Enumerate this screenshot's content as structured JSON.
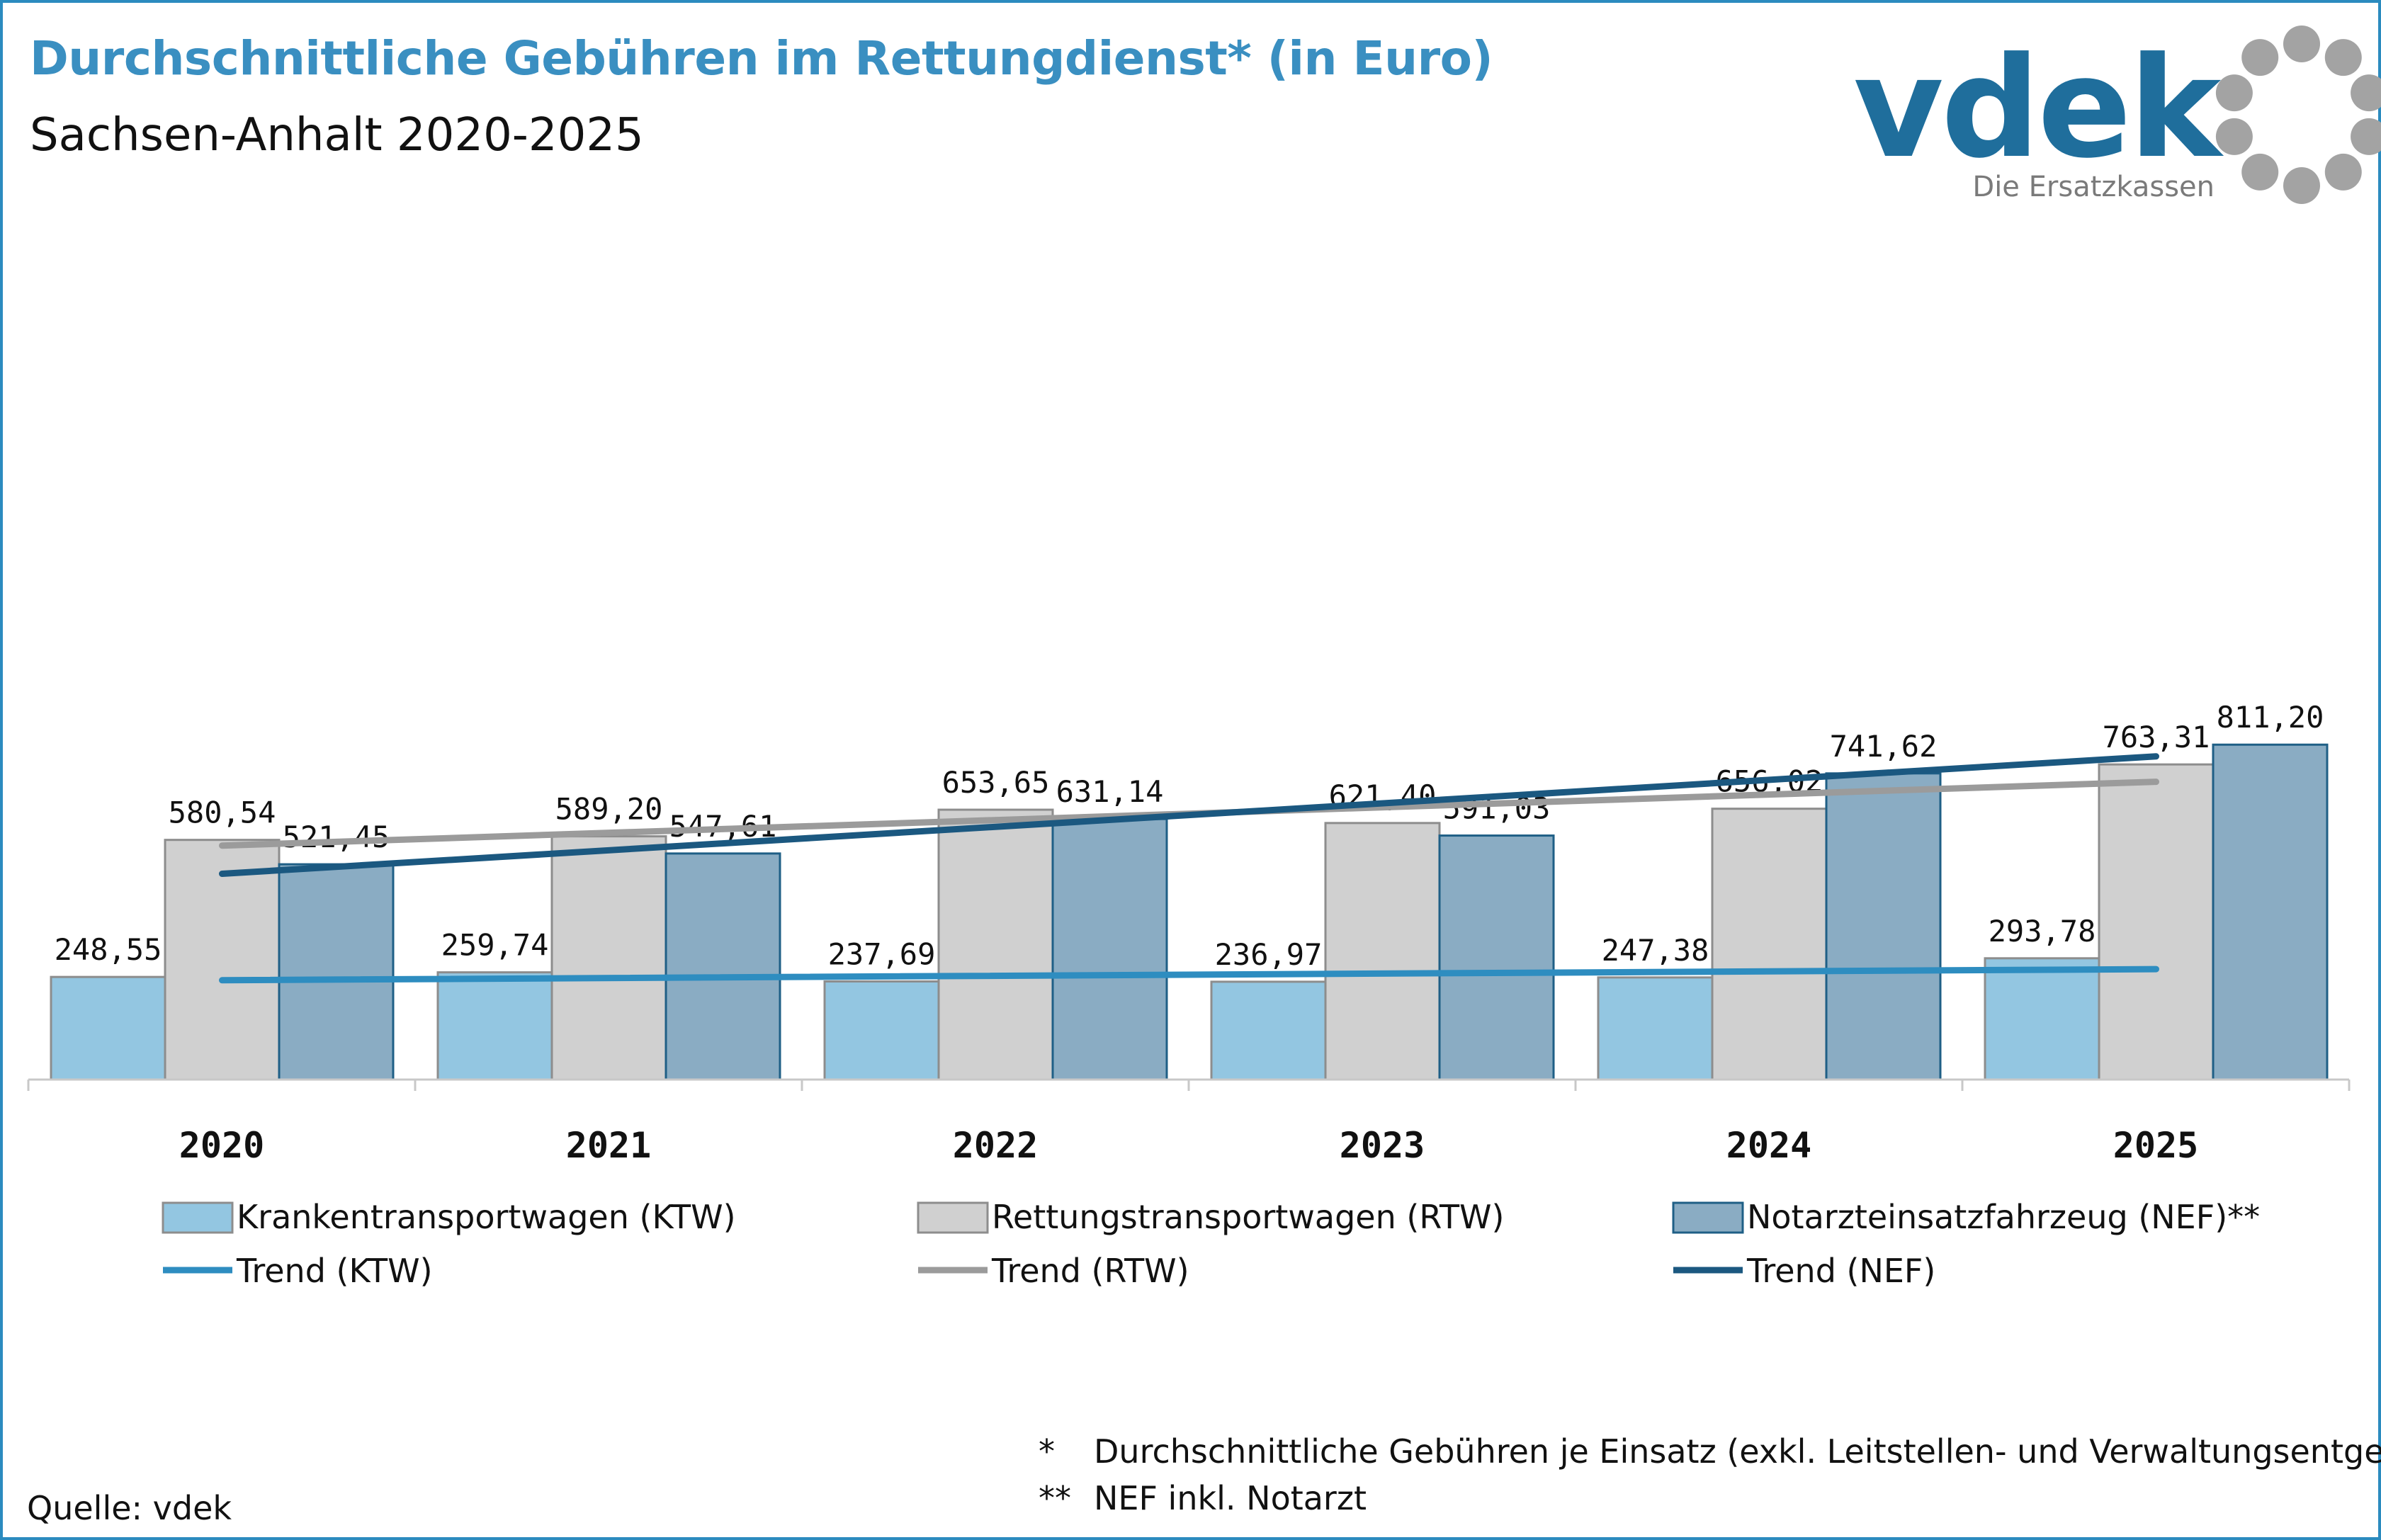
{
  "header": {
    "title": "Durchschnittliche Gebühren im Rettungdienst* (in Euro)",
    "subtitle": "Sachsen-Anhalt 2020-2025"
  },
  "logo": {
    "wordmark": "vdek",
    "tagline": "Die Ersatzkassen",
    "colors": {
      "wordmark": "#1f6e9c",
      "dots": "#a3a3a3"
    }
  },
  "chart_data": {
    "type": "bar",
    "categories": [
      "2020",
      "2021",
      "2022",
      "2023",
      "2024",
      "2025"
    ],
    "series": [
      {
        "name": "Krankentransportwagen (KTW)",
        "color": "#93c6e1",
        "values": [
          248.55,
          259.74,
          237.69,
          236.97,
          247.38,
          293.78
        ],
        "labels": [
          "248,55",
          "259,74",
          "237,69",
          "236,97",
          "247,38",
          "293,78"
        ]
      },
      {
        "name": "Rettungstransportwagen (RTW)",
        "color": "#d0d0d0",
        "values": [
          580.54,
          589.2,
          653.65,
          621.4,
          656.02,
          763.31
        ],
        "labels": [
          "580,54",
          "589,20",
          "653,65",
          "621,40",
          "656,02",
          "763,31"
        ]
      },
      {
        "name": "Notarzteinsatzfahrzeug (NEF)**",
        "color": "#8aacc3",
        "values": [
          521.45,
          547.61,
          631.14,
          591.03,
          741.62,
          811.2
        ],
        "labels": [
          "521,45",
          "547,61",
          "631,14",
          "591,03",
          "741,62",
          "811,20"
        ]
      }
    ],
    "trends": [
      {
        "name": "Trend (KTW)",
        "color": "#2e8dc0",
        "series_index": 0
      },
      {
        "name": "Trend (RTW)",
        "color": "#9b9b9b",
        "series_index": 1
      },
      {
        "name": "Trend (NEF)",
        "color": "#1b5880",
        "series_index": 2
      }
    ],
    "ylim": [
      0,
      1100
    ],
    "grid": false,
    "legend": "bottom"
  },
  "footer": {
    "source": "Quelle: vdek",
    "notes": [
      {
        "mark": "*",
        "text": "Durchschnittliche Gebühren je Einsatz (exkl. Leitstellen- und Verwaltungsentgelte)"
      },
      {
        "mark": "**",
        "text": "NEF inkl. Notarzt"
      }
    ]
  }
}
